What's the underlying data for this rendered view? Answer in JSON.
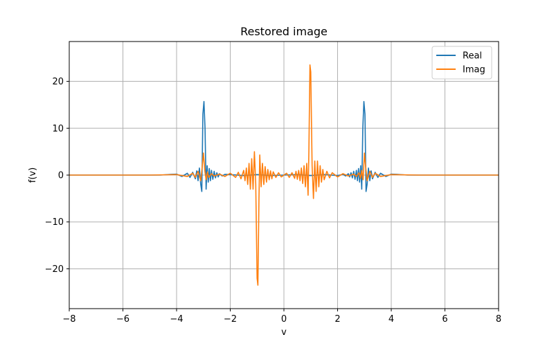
{
  "chart_data": {
    "type": "line",
    "title": "Restored image",
    "xlabel": "v",
    "ylabel": "f(v)",
    "xlim": [
      -8,
      8
    ],
    "ylim": [
      -28.5,
      28.5
    ],
    "xticks": [
      -8,
      -6,
      -4,
      -2,
      0,
      2,
      4,
      6,
      8
    ],
    "yticks": [
      -20,
      -10,
      0,
      10,
      20
    ],
    "xtick_labels": [
      "−8",
      "−6",
      "−4",
      "−2",
      "0",
      "2",
      "4",
      "6",
      "8"
    ],
    "ytick_labels": [
      "−20",
      "−10",
      "0",
      "10",
      "20"
    ],
    "grid": true,
    "legend_position": "top-right",
    "series": [
      {
        "name": "Real",
        "color": "#1f77b4",
        "x": [
          -8.0,
          -4.6,
          -4.2,
          -4.0,
          -3.8,
          -3.6,
          -3.5,
          -3.4,
          -3.3,
          -3.25,
          -3.2,
          -3.15,
          -3.1,
          -3.06,
          -3.02,
          -2.98,
          -2.94,
          -2.9,
          -2.86,
          -2.82,
          -2.78,
          -2.74,
          -2.7,
          -2.65,
          -2.6,
          -2.55,
          -2.5,
          -2.45,
          -2.4,
          -2.3,
          -2.2,
          -2.0,
          -1.5,
          -1.0,
          -0.5,
          0.0,
          0.5,
          1.0,
          1.5,
          2.0,
          2.2,
          2.3,
          2.4,
          2.45,
          2.5,
          2.55,
          2.6,
          2.65,
          2.7,
          2.74,
          2.78,
          2.82,
          2.86,
          2.9,
          2.94,
          2.98,
          3.02,
          3.06,
          3.1,
          3.15,
          3.2,
          3.25,
          3.3,
          3.4,
          3.5,
          3.6,
          3.8,
          4.0,
          4.2,
          4.6,
          8.0
        ],
        "y": [
          0.0,
          0.0,
          0.15,
          0.2,
          -0.3,
          0.4,
          -0.5,
          0.6,
          -0.8,
          0.9,
          -1.2,
          1.5,
          -2.0,
          -3.5,
          13.0,
          15.7,
          10.0,
          -3.0,
          2.0,
          -1.5,
          1.4,
          -1.2,
          1.0,
          -0.9,
          0.8,
          -0.6,
          0.5,
          -0.4,
          0.3,
          -0.2,
          0.15,
          0.1,
          -0.1,
          0.1,
          -0.1,
          0.0,
          0.1,
          -0.1,
          0.1,
          -0.1,
          0.15,
          -0.2,
          0.3,
          -0.4,
          0.5,
          -0.6,
          0.8,
          -0.9,
          1.0,
          -1.2,
          1.4,
          -1.5,
          2.0,
          -3.0,
          10.0,
          15.7,
          13.0,
          -3.5,
          -2.0,
          1.5,
          -1.2,
          0.9,
          -0.8,
          0.6,
          -0.5,
          0.4,
          -0.3,
          0.2,
          0.15,
          0.0,
          0.0
        ]
      },
      {
        "name": "Imag",
        "color": "#ff7f0e",
        "x": [
          -8.0,
          -5.0,
          -4.0,
          -3.6,
          -3.4,
          -3.3,
          -3.2,
          -3.1,
          -3.05,
          -3.0,
          -2.95,
          -2.9,
          -2.85,
          -2.8,
          -2.7,
          -2.6,
          -2.4,
          -2.2,
          -2.0,
          -1.8,
          -1.7,
          -1.6,
          -1.5,
          -1.45,
          -1.4,
          -1.35,
          -1.3,
          -1.25,
          -1.2,
          -1.15,
          -1.1,
          -1.05,
          -1.0,
          -0.97,
          -0.93,
          -0.9,
          -0.85,
          -0.8,
          -0.75,
          -0.7,
          -0.65,
          -0.6,
          -0.55,
          -0.5,
          -0.45,
          -0.4,
          -0.3,
          -0.2,
          -0.1,
          0.0,
          0.1,
          0.2,
          0.3,
          0.4,
          0.45,
          0.5,
          0.55,
          0.6,
          0.65,
          0.7,
          0.75,
          0.8,
          0.85,
          0.9,
          0.93,
          0.97,
          1.0,
          1.05,
          1.1,
          1.15,
          1.2,
          1.25,
          1.3,
          1.35,
          1.4,
          1.45,
          1.5,
          1.6,
          1.7,
          1.8,
          2.0,
          2.2,
          2.4,
          2.6,
          2.7,
          2.8,
          2.85,
          2.9,
          2.95,
          3.0,
          3.05,
          3.1,
          3.2,
          3.3,
          3.4,
          3.6,
          4.0,
          5.0,
          8.0
        ],
        "y": [
          0.0,
          0.0,
          0.1,
          -0.3,
          0.4,
          -0.5,
          0.8,
          -1.2,
          1.5,
          4.7,
          1.0,
          -1.0,
          0.7,
          -0.5,
          0.3,
          -0.2,
          0.2,
          -0.3,
          0.4,
          -0.5,
          0.6,
          -0.8,
          1.0,
          -1.2,
          1.5,
          -2.0,
          2.5,
          -3.0,
          3.5,
          -3.0,
          5.0,
          -2.0,
          -22.0,
          -23.5,
          -5.0,
          4.3,
          -2.5,
          2.5,
          -2.0,
          1.8,
          -1.5,
          1.2,
          -1.0,
          0.9,
          -0.8,
          0.7,
          -0.5,
          0.5,
          -0.4,
          0.0,
          0.4,
          -0.5,
          0.5,
          -0.7,
          0.8,
          -0.9,
          1.0,
          -1.2,
          1.5,
          -1.8,
          2.0,
          -2.5,
          2.5,
          -4.3,
          5.0,
          23.5,
          22.0,
          2.0,
          -5.0,
          3.0,
          -3.5,
          3.0,
          -2.5,
          2.0,
          -1.5,
          1.2,
          -1.0,
          0.8,
          -0.6,
          0.5,
          -0.4,
          0.3,
          -0.2,
          0.2,
          -0.3,
          0.5,
          -0.7,
          1.0,
          -1.0,
          4.7,
          1.5,
          -1.2,
          0.8,
          -0.5,
          0.4,
          -0.3,
          0.1,
          0.0,
          0.0
        ]
      }
    ]
  }
}
